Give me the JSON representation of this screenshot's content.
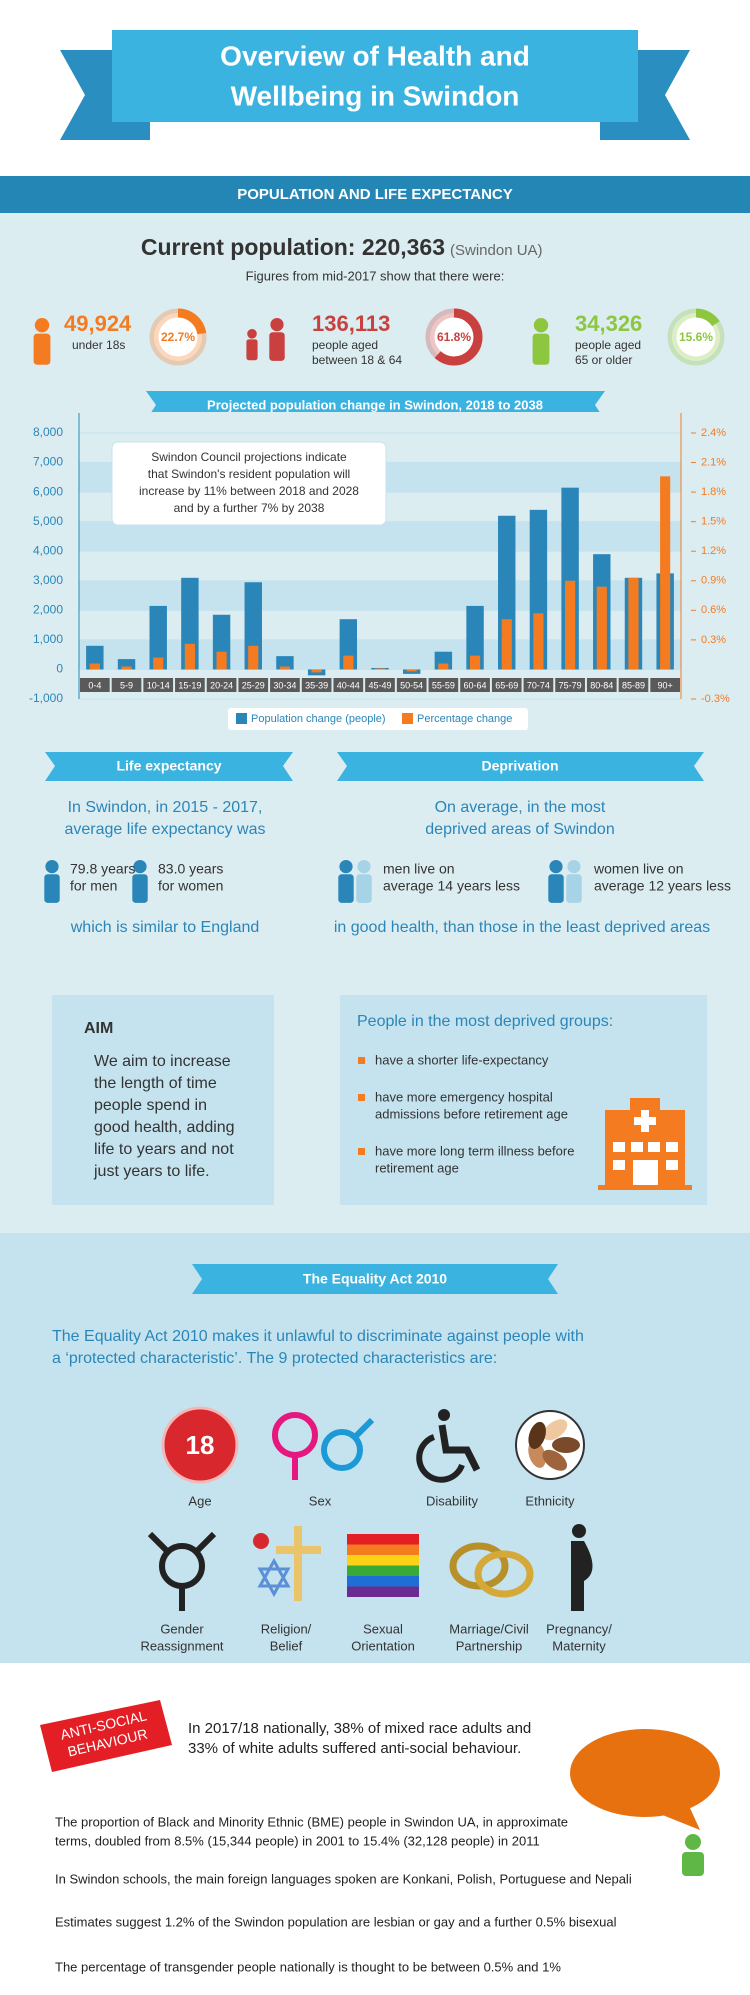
{
  "header": {
    "title": [
      "Overview of Health and",
      "Wellbeing in Swindon"
    ]
  },
  "population": {
    "heading": "POPULATION AND LIFE EXPECTANCY",
    "current_label": "Current population: 220,363",
    "current_note": "(Swindon UA)",
    "intro": "Figures from mid-2017 show that there were:",
    "groups": [
      {
        "count": "49,924",
        "label": [
          "under 18s"
        ],
        "share": {
          "value": 22.7,
          "label": "22.7%"
        },
        "color": "#f47b20"
      },
      {
        "count": "136,113",
        "label": [
          "people aged",
          "between 18 & 64"
        ],
        "share": {
          "value": 61.8,
          "label": "61.8%"
        },
        "color": "#c8413e"
      },
      {
        "count": "34,326",
        "label": [
          "people aged",
          "65 or older"
        ],
        "share": {
          "value": 15.6,
          "label": "15.6%"
        },
        "color": "#8dc63f"
      }
    ]
  },
  "chart_data": {
    "type": "bar",
    "title": "Projected population change in Swindon, 2018 to 2038",
    "annotation": [
      "Swindon Council projections indicate",
      "that Swindon's resident population will",
      "increase by 11% between 2018 and 2028",
      "and by a further 7% by 2038"
    ],
    "categories": [
      "0-4",
      "5-9",
      "10-14",
      "15-19",
      "20-24",
      "25-29",
      "30-34",
      "35-39",
      "40-44",
      "45-49",
      "50-54",
      "55-59",
      "60-64",
      "65-69",
      "70-74",
      "75-79",
      "80-84",
      "85-89",
      "90+"
    ],
    "series": [
      {
        "name": "Population change (people)",
        "color": "#2a86b9",
        "values": [
          800,
          350,
          2150,
          3100,
          1850,
          2950,
          450,
          -200,
          1700,
          50,
          -150,
          600,
          2150,
          5200,
          5400,
          6150,
          3900,
          3100,
          3250
        ]
      },
      {
        "name": "Percentage change",
        "color": "#f47b20",
        "axis": "y2",
        "values": [
          0.06,
          0.03,
          0.12,
          0.26,
          0.18,
          0.24,
          0.03,
          -0.03,
          0.14,
          0.01,
          -0.02,
          0.06,
          0.14,
          0.51,
          0.57,
          0.9,
          0.84,
          0.93,
          1.96
        ]
      }
    ],
    "ylim": [
      -1000,
      8000
    ],
    "yticks": [
      {
        "value": -1000,
        "label": "-1,000"
      },
      0,
      {
        "value": 1000,
        "label": "1,000"
      },
      {
        "value": 2000,
        "label": "2,000"
      },
      {
        "value": 3000,
        "label": "3,000"
      },
      {
        "value": 4000,
        "label": "4,000"
      },
      {
        "value": 5000,
        "label": "5,000"
      },
      {
        "value": 6000,
        "label": "6,000"
      },
      {
        "value": 7000,
        "label": "7,000"
      },
      {
        "value": 8000,
        "label": "8,000"
      }
    ],
    "y2lim": [
      -0.3,
      2.4
    ],
    "y2ticks": [
      {
        "value": -0.3,
        "label": "-0.3%"
      },
      {
        "value": 0.3,
        "label": "0.3%"
      },
      {
        "value": 0.6,
        "label": "0.6%"
      },
      {
        "value": 0.9,
        "label": "0.9%"
      },
      {
        "value": 1.2,
        "label": "1.2%"
      },
      {
        "value": 1.5,
        "label": "1.5%"
      },
      {
        "value": 1.8,
        "label": "1.8%"
      },
      {
        "value": 2.1,
        "label": "2.1%"
      },
      {
        "value": 2.4,
        "label": "2.4%"
      }
    ],
    "grid": true,
    "legend": "bottom"
  },
  "life_expectancy": {
    "heading": "Life expectancy",
    "intro": [
      "In Swindon, in 2015 - 2017,",
      "average life expectancy was"
    ],
    "men": [
      "79.8 years",
      "for men"
    ],
    "women": [
      "83.0 years",
      "for women"
    ],
    "note": "which is similar to England"
  },
  "deprivation": {
    "heading": "Deprivation",
    "intro": [
      "On average, in the most",
      "deprived areas of Swindon"
    ],
    "men": [
      "men live on",
      "average 14 years less"
    ],
    "women": [
      "women live on",
      "average 12 years less"
    ],
    "note": "in good health, than those in the least deprived areas"
  },
  "aim": {
    "heading": "AIM",
    "text": [
      "We aim to increase",
      "the length of time",
      "people spend in",
      "good health, adding",
      "life to years and not",
      "just years to life."
    ]
  },
  "deprived_groups": {
    "heading": "People in the most deprived groups:",
    "items": [
      [
        "have a shorter life-expectancy"
      ],
      [
        "have more emergency hospital",
        "admissions before retirement age"
      ],
      [
        "have more long term illness before",
        "retirement age"
      ]
    ]
  },
  "equality": {
    "heading": "The Equality Act 2010",
    "intro": [
      "The Equality Act 2010 makes it unlawful to discriminate against people with",
      "a ‘protected characteristic’. The 9 protected characteristics are:"
    ],
    "age_icon": "18",
    "characteristics": [
      [
        "Age"
      ],
      [
        "Sex"
      ],
      [
        "Disability"
      ],
      [
        "Ethnicity"
      ],
      [
        "Gender",
        "Reassignment"
      ],
      [
        "Religion/",
        "Belief"
      ],
      [
        "Sexual",
        "Orientation"
      ],
      [
        "Marriage/Civil",
        "Partnership"
      ],
      [
        "Pregnancy/",
        "Maternity"
      ]
    ]
  },
  "antisocial": {
    "badge": [
      "ANTI-SOCIAL",
      "BEHAVIOUR"
    ],
    "text": [
      "In 2017/18 nationally, 38% of mixed race adults and",
      "33% of white adults suffered anti-social behaviour."
    ],
    "facts": [
      [
        "The proportion of Black and Minority Ethnic (BME) people in Swindon UA, in approximate",
        "terms, doubled from 8.5% (15,344 people) in 2001 to 15.4% (32,128 people) in 2011"
      ],
      [
        "In Swindon schools, the main foreign languages spoken are Konkani, Polish, Portuguese and Nepali"
      ],
      [
        "Estimates suggest 1.2% of the Swindon population are lesbian or gay and a further 0.5% bisexual"
      ],
      [
        "The percentage of transgender people nationally is thought to be between 0.5% and 1%"
      ]
    ]
  }
}
